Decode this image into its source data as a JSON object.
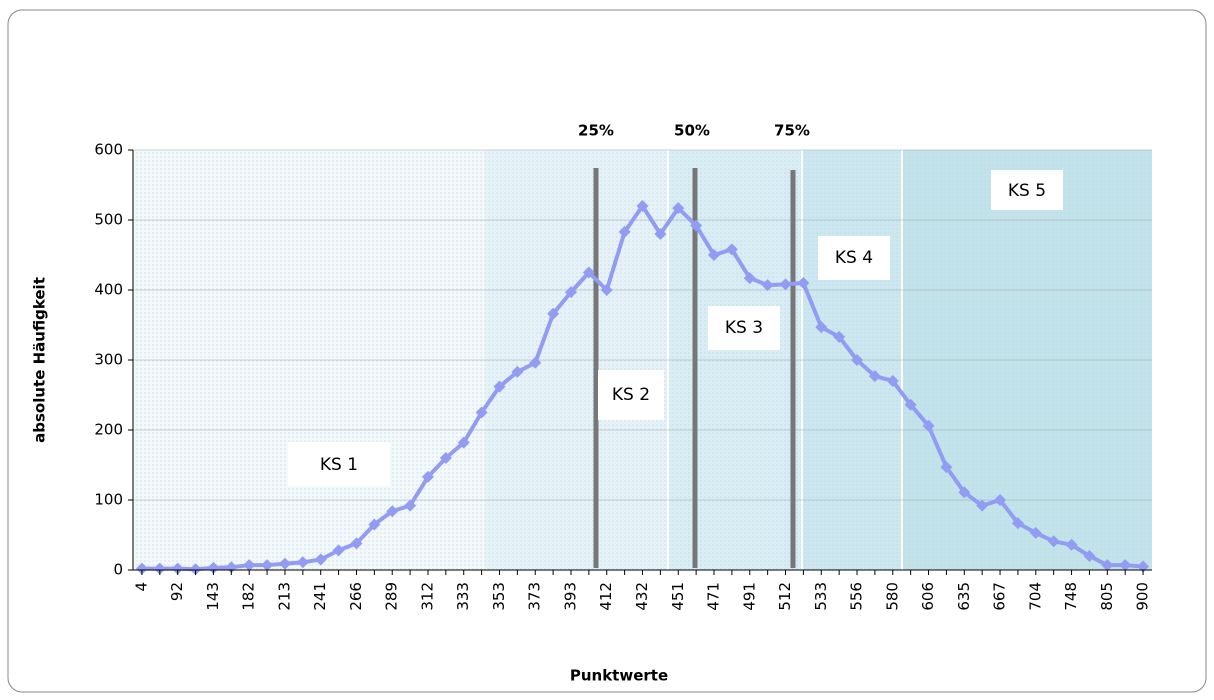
{
  "chart_data": {
    "type": "line",
    "x_label": "Punktwerte",
    "y_label": "absolute Häufigkeit",
    "categories": [
      "4",
      null,
      "92",
      null,
      "143",
      null,
      "182",
      null,
      "213",
      null,
      "241",
      null,
      "266",
      null,
      "289",
      null,
      "312",
      null,
      "333",
      null,
      "353",
      null,
      "373",
      null,
      "393",
      null,
      "412",
      null,
      "432",
      null,
      "451",
      null,
      "471",
      null,
      "491",
      null,
      "512",
      null,
      "533",
      null,
      "556",
      null,
      "580",
      null,
      "606",
      null,
      "635",
      null,
      "667",
      null,
      "704",
      null,
      "748",
      null,
      "805",
      null,
      "900"
    ],
    "series": [
      {
        "color": "#919cf2",
        "values": [
          2,
          2,
          2,
          1,
          3,
          4,
          7,
          7,
          9,
          11,
          15,
          28,
          38,
          65,
          84,
          92,
          133,
          160,
          182,
          225,
          262,
          283,
          296,
          366,
          397,
          425,
          400,
          483,
          520,
          480,
          517,
          492,
          450,
          458,
          417,
          407,
          408,
          410,
          347,
          333,
          300,
          277,
          270,
          236,
          206,
          147,
          111,
          92,
          100,
          67,
          53,
          41,
          36,
          20,
          7,
          7,
          5
        ]
      }
    ],
    "ylim": [
      0,
      600
    ],
    "yticks": [
      0,
      100,
      200,
      300,
      400,
      500,
      600
    ],
    "grid": true,
    "regions": [
      "KS 1",
      "KS 2",
      "KS 3",
      "KS 4",
      "KS 5"
    ],
    "quantiles": [
      "25%",
      "50%",
      "75%"
    ]
  }
}
